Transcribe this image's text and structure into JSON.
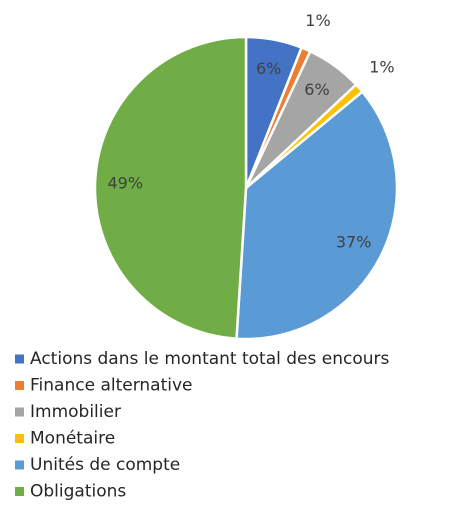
{
  "chart_data": {
    "type": "pie",
    "categories": [
      "Actions dans le montant total des encours",
      "Finance alternative",
      "Immobilier",
      "Monétaire",
      "Unités de compte",
      "Obligations"
    ],
    "values": [
      6,
      1,
      6,
      1,
      37,
      49
    ],
    "value_labels": [
      "6%",
      "1%",
      "6%",
      "1%",
      "37%",
      "49%"
    ],
    "colors": [
      "#4472c4",
      "#ed7d31",
      "#a5a5a5",
      "#ffc000",
      "#5b9bd5",
      "#70ad47"
    ],
    "legend": "bottom"
  }
}
